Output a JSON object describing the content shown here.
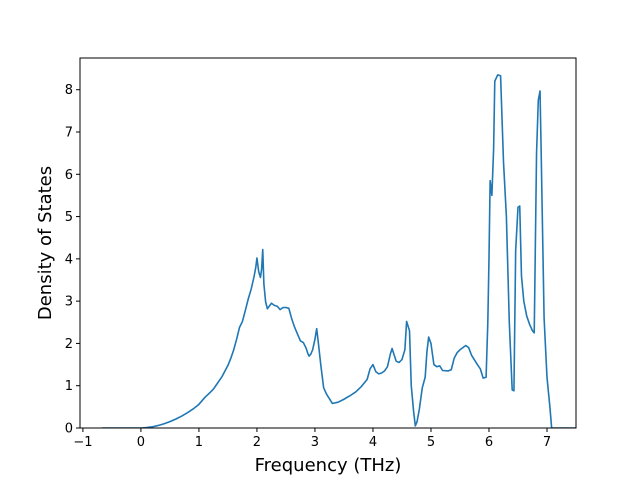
{
  "chart_data": {
    "type": "line",
    "title": "",
    "xlabel": "Frequency (THz)",
    "ylabel": "Density of States",
    "xlim": [
      -1.05,
      7.5
    ],
    "ylim": [
      0,
      8.75
    ],
    "grid": false,
    "legend": "none",
    "x_ticks": [
      -1,
      0,
      1,
      2,
      3,
      4,
      5,
      6,
      7
    ],
    "x_tick_labels": [
      "−1",
      "0",
      "1",
      "2",
      "3",
      "4",
      "5",
      "6",
      "7"
    ],
    "y_ticks": [
      0,
      1,
      2,
      3,
      4,
      5,
      6,
      7,
      8
    ],
    "y_tick_labels": [
      "0",
      "1",
      "2",
      "3",
      "4",
      "5",
      "6",
      "7",
      "8"
    ],
    "series": [
      {
        "name": "",
        "color": "#1f77b4",
        "points": [
          [
            -0.67,
            0
          ],
          [
            0.0,
            0.0
          ],
          [
            0.1,
            0.01
          ],
          [
            0.2,
            0.03
          ],
          [
            0.3,
            0.06
          ],
          [
            0.4,
            0.1
          ],
          [
            0.5,
            0.15
          ],
          [
            0.6,
            0.21
          ],
          [
            0.7,
            0.28
          ],
          [
            0.8,
            0.36
          ],
          [
            0.9,
            0.45
          ],
          [
            1.0,
            0.56
          ],
          [
            1.1,
            0.72
          ],
          [
            1.2,
            0.85
          ],
          [
            1.25,
            0.92
          ],
          [
            1.3,
            1.02
          ],
          [
            1.4,
            1.22
          ],
          [
            1.5,
            1.48
          ],
          [
            1.55,
            1.65
          ],
          [
            1.6,
            1.85
          ],
          [
            1.65,
            2.1
          ],
          [
            1.7,
            2.38
          ],
          [
            1.75,
            2.52
          ],
          [
            1.8,
            2.78
          ],
          [
            1.85,
            3.05
          ],
          [
            1.9,
            3.28
          ],
          [
            1.95,
            3.58
          ],
          [
            1.98,
            3.8
          ],
          [
            2.0,
            4.02
          ],
          [
            2.03,
            3.7
          ],
          [
            2.06,
            3.56
          ],
          [
            2.08,
            3.75
          ],
          [
            2.1,
            4.22
          ],
          [
            2.12,
            3.4
          ],
          [
            2.15,
            2.98
          ],
          [
            2.18,
            2.82
          ],
          [
            2.25,
            2.95
          ],
          [
            2.3,
            2.9
          ],
          [
            2.35,
            2.88
          ],
          [
            2.4,
            2.8
          ],
          [
            2.45,
            2.85
          ],
          [
            2.5,
            2.85
          ],
          [
            2.55,
            2.83
          ],
          [
            2.6,
            2.58
          ],
          [
            2.65,
            2.38
          ],
          [
            2.7,
            2.22
          ],
          [
            2.75,
            2.06
          ],
          [
            2.8,
            2.02
          ],
          [
            2.85,
            1.88
          ],
          [
            2.88,
            1.75
          ],
          [
            2.9,
            1.7
          ],
          [
            2.93,
            1.75
          ],
          [
            2.96,
            1.85
          ],
          [
            3.0,
            2.1
          ],
          [
            3.03,
            2.35
          ],
          [
            3.06,
            2.0
          ],
          [
            3.1,
            1.5
          ],
          [
            3.15,
            0.95
          ],
          [
            3.2,
            0.8
          ],
          [
            3.3,
            0.58
          ],
          [
            3.4,
            0.61
          ],
          [
            3.5,
            0.68
          ],
          [
            3.6,
            0.76
          ],
          [
            3.7,
            0.85
          ],
          [
            3.8,
            0.98
          ],
          [
            3.9,
            1.15
          ],
          [
            3.95,
            1.4
          ],
          [
            4.0,
            1.5
          ],
          [
            4.05,
            1.33
          ],
          [
            4.1,
            1.28
          ],
          [
            4.15,
            1.3
          ],
          [
            4.2,
            1.35
          ],
          [
            4.25,
            1.45
          ],
          [
            4.3,
            1.75
          ],
          [
            4.33,
            1.88
          ],
          [
            4.36,
            1.75
          ],
          [
            4.4,
            1.58
          ],
          [
            4.45,
            1.55
          ],
          [
            4.5,
            1.62
          ],
          [
            4.55,
            1.85
          ],
          [
            4.58,
            2.52
          ],
          [
            4.63,
            2.3
          ],
          [
            4.66,
            1.0
          ],
          [
            4.7,
            0.4
          ],
          [
            4.73,
            0.05
          ],
          [
            4.76,
            0.15
          ],
          [
            4.8,
            0.45
          ],
          [
            4.85,
            0.95
          ],
          [
            4.9,
            1.2
          ],
          [
            4.93,
            1.8
          ],
          [
            4.96,
            2.15
          ],
          [
            5.0,
            2.0
          ],
          [
            5.05,
            1.5
          ],
          [
            5.1,
            1.45
          ],
          [
            5.15,
            1.47
          ],
          [
            5.2,
            1.36
          ],
          [
            5.3,
            1.35
          ],
          [
            5.35,
            1.38
          ],
          [
            5.4,
            1.65
          ],
          [
            5.45,
            1.78
          ],
          [
            5.5,
            1.85
          ],
          [
            5.55,
            1.9
          ],
          [
            5.6,
            1.95
          ],
          [
            5.65,
            1.9
          ],
          [
            5.7,
            1.72
          ],
          [
            5.8,
            1.5
          ],
          [
            5.85,
            1.4
          ],
          [
            5.9,
            1.18
          ],
          [
            5.95,
            1.2
          ],
          [
            5.98,
            2.5
          ],
          [
            6.0,
            4.0
          ],
          [
            6.02,
            5.85
          ],
          [
            6.05,
            5.5
          ],
          [
            6.08,
            6.6
          ],
          [
            6.1,
            8.2
          ],
          [
            6.15,
            8.35
          ],
          [
            6.2,
            8.33
          ],
          [
            6.25,
            6.3
          ],
          [
            6.3,
            5.0
          ],
          [
            6.35,
            2.5
          ],
          [
            6.4,
            0.9
          ],
          [
            6.43,
            0.88
          ],
          [
            6.46,
            4.2
          ],
          [
            6.5,
            5.22
          ],
          [
            6.53,
            5.25
          ],
          [
            6.56,
            3.6
          ],
          [
            6.6,
            3.0
          ],
          [
            6.65,
            2.65
          ],
          [
            6.7,
            2.45
          ],
          [
            6.75,
            2.3
          ],
          [
            6.78,
            2.25
          ],
          [
            6.82,
            6.5
          ],
          [
            6.85,
            7.75
          ],
          [
            6.88,
            7.97
          ],
          [
            6.9,
            6.5
          ],
          [
            6.95,
            2.6
          ],
          [
            7.0,
            1.2
          ],
          [
            7.05,
            0.5
          ],
          [
            7.08,
            0.0
          ],
          [
            7.72,
            0.0
          ]
        ]
      }
    ]
  }
}
